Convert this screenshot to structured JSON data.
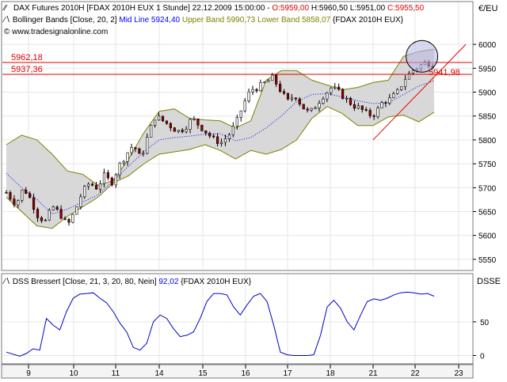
{
  "header": {
    "symbol_line": "DAX Futures 2010H [FDAX 2010H EUX  1 Stunde] 22.12.2009 15:00:00 -",
    "ohlc": {
      "open_label": "O:",
      "open": "5959,00",
      "high_label": "H:",
      "high": "5960,50",
      "low_label": "L:",
      "low": "5951,00",
      "close_label": "C:",
      "close": "5955,50"
    },
    "bb_line_prefix": "Bollinger Bands [Close, 20, 2]",
    "bb_mid": "Mid Line 5924,40",
    "bb_upper": "Upper Band 5990,73",
    "bb_lower": "Lower Band 5858,07",
    "bb_instrument": "{FDAX 2010H EUX}",
    "website": "www.tradesignalonline.com"
  },
  "currency_label": "€/EU",
  "indicator_header": {
    "text": "DSS Bressert [Close, 21, 3, 20, 80, Nein]",
    "value": "92,02",
    "instrument": "{FDAX 2010H EUX}"
  },
  "indicator_axis_title": "DSSE",
  "price_labels": {
    "upper": "5962,18",
    "lower": "5937,36",
    "trend": "5941,98"
  },
  "colors": {
    "candle_up": "#ffffff",
    "candle_down": "#990000",
    "band_line": "#808000",
    "band_fill": "#d8d8d8",
    "mid_line": "#0000ff",
    "hline": "#dd0000",
    "trendline": "#ee0000",
    "open_color": "#dd0000",
    "dss": "#0000cc",
    "grid": "#e6e6e6"
  },
  "chart_data": [
    {
      "type": "candlestick",
      "title": "DAX Futures 2010H",
      "ylabel": "€/EU",
      "ylim": [
        5530,
        6030
      ],
      "yticks": [
        5550,
        5600,
        5650,
        5700,
        5750,
        5800,
        5850,
        5900,
        5950,
        6000
      ],
      "xticks": [
        "9",
        "10",
        "11",
        "14",
        "15",
        "16",
        "17",
        "18",
        "21",
        "22",
        "23"
      ],
      "grid": true,
      "horizontal_lines": [
        5962.18,
        5937.36
      ],
      "trendline_label": 5941.98,
      "price_path": [
        [
          0,
          5690
        ],
        [
          8,
          5665
        ],
        [
          14,
          5700
        ],
        [
          20,
          5675
        ],
        [
          26,
          5640
        ],
        [
          32,
          5630
        ],
        [
          38,
          5660
        ],
        [
          44,
          5645
        ],
        [
          50,
          5620
        ],
        [
          56,
          5650
        ],
        [
          62,
          5690
        ],
        [
          68,
          5710
        ],
        [
          74,
          5700
        ],
        [
          80,
          5725
        ],
        [
          86,
          5710
        ],
        [
          92,
          5745
        ],
        [
          98,
          5770
        ],
        [
          104,
          5790
        ],
        [
          110,
          5760
        ],
        [
          116,
          5810
        ],
        [
          122,
          5850
        ],
        [
          128,
          5840
        ],
        [
          134,
          5830
        ],
        [
          140,
          5818
        ],
        [
          146,
          5825
        ],
        [
          152,
          5845
        ],
        [
          158,
          5830
        ],
        [
          164,
          5815
        ],
        [
          170,
          5800
        ],
        [
          176,
          5795
        ],
        [
          182,
          5810
        ],
        [
          188,
          5835
        ],
        [
          194,
          5875
        ],
        [
          200,
          5905
        ],
        [
          206,
          5910
        ],
        [
          212,
          5920
        ],
        [
          218,
          5930
        ],
        [
          224,
          5905
        ],
        [
          230,
          5880
        ],
        [
          236,
          5895
        ],
        [
          242,
          5870
        ],
        [
          248,
          5855
        ],
        [
          254,
          5875
        ],
        [
          260,
          5895
        ],
        [
          266,
          5910
        ],
        [
          272,
          5900
        ],
        [
          278,
          5885
        ],
        [
          284,
          5872
        ],
        [
          290,
          5865
        ],
        [
          296,
          5852
        ],
        [
          302,
          5855
        ],
        [
          308,
          5880
        ],
        [
          314,
          5885
        ],
        [
          320,
          5900
        ],
        [
          326,
          5928
        ],
        [
          332,
          5945
        ],
        [
          338,
          5955
        ],
        [
          344,
          5963
        ],
        [
          350,
          5957
        ]
      ],
      "bollinger": {
        "upper_label": "Upper Band",
        "lower_label": "Lower Band",
        "mid_label": "Mid Line",
        "upper": [
          5790,
          5810,
          5800,
          5770,
          5735,
          5728,
          5705,
          5715,
          5760,
          5815,
          5860,
          5865,
          5845,
          5842,
          5840,
          5825,
          5840,
          5925,
          5945,
          5945,
          5925,
          5915,
          5905,
          5910,
          5920,
          5925,
          5975,
          5985,
          5990
        ],
        "mid": [
          5730,
          5700,
          5675,
          5645,
          5655,
          5670,
          5685,
          5715,
          5745,
          5775,
          5800,
          5805,
          5808,
          5812,
          5813,
          5798,
          5805,
          5825,
          5850,
          5880,
          5895,
          5897,
          5890,
          5882,
          5876,
          5878,
          5895,
          5913,
          5924
        ],
        "lower": [
          5680,
          5650,
          5620,
          5615,
          5640,
          5660,
          5680,
          5710,
          5725,
          5750,
          5770,
          5775,
          5780,
          5790,
          5778,
          5760,
          5778,
          5770,
          5780,
          5800,
          5845,
          5870,
          5855,
          5830,
          5830,
          5848,
          5852,
          5838,
          5858
        ]
      }
    },
    {
      "type": "line",
      "title": "DSS Bressert",
      "ylabel": "DSSE",
      "ylim": [
        -10,
        105
      ],
      "yticks": [
        0,
        50
      ],
      "xticks": [
        "9",
        "10",
        "11",
        "14",
        "15",
        "16",
        "17",
        "18",
        "21",
        "22",
        "23"
      ],
      "series": [
        {
          "name": "DSS Bressert",
          "values": [
            5,
            2,
            -1,
            3,
            10,
            8,
            55,
            45,
            38,
            65,
            85,
            91,
            92,
            93,
            85,
            78,
            65,
            48,
            35,
            12,
            8,
            18,
            50,
            60,
            55,
            40,
            28,
            30,
            35,
            55,
            80,
            92,
            92,
            90,
            72,
            60,
            75,
            88,
            92,
            80,
            45,
            5,
            1,
            0,
            0,
            0,
            1,
            30,
            72,
            82,
            70,
            50,
            38,
            60,
            80,
            84,
            82,
            85,
            90,
            93,
            94,
            93,
            91,
            92,
            88
          ]
        }
      ]
    }
  ]
}
